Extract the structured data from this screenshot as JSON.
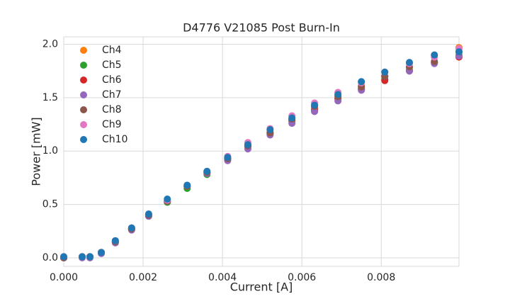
{
  "chart_data": {
    "type": "scatter",
    "title": "D4776 V21085 Post Burn-In",
    "x_label": "Current [A]",
    "y_label": "Power [mW]",
    "x": [
      0.0,
      0.000464,
      0.00066,
      0.000946,
      0.0013,
      0.00171,
      0.00214,
      0.00261,
      0.00311,
      0.00361,
      0.00413,
      0.00464,
      0.0052,
      0.00575,
      0.00632,
      0.00691,
      0.0075,
      0.00809,
      0.00871,
      0.00934,
      0.00996
    ],
    "series": [
      {
        "name": "Ch4",
        "color": "#ff7f0e",
        "values": [
          0.0,
          0.01,
          0.01,
          0.05,
          0.15,
          0.27,
          0.4,
          0.53,
          0.67,
          0.8,
          0.93,
          1.06,
          1.18,
          1.3,
          1.41,
          1.52,
          1.61,
          1.7,
          1.78,
          1.9,
          1.97
        ]
      },
      {
        "name": "Ch5",
        "color": "#2ca02c",
        "values": [
          0.0,
          0.01,
          0.01,
          0.05,
          0.15,
          0.27,
          0.39,
          0.52,
          0.65,
          0.78,
          0.92,
          1.04,
          1.16,
          1.28,
          1.38,
          1.49,
          1.58,
          1.67,
          1.76,
          1.83,
          1.9
        ]
      },
      {
        "name": "Ch6",
        "color": "#d62728",
        "values": [
          0.0,
          0.01,
          0.01,
          0.05,
          0.15,
          0.27,
          0.4,
          0.53,
          0.67,
          0.8,
          0.93,
          1.05,
          1.17,
          1.29,
          1.39,
          1.49,
          1.58,
          1.66,
          1.75,
          1.83,
          1.88
        ]
      },
      {
        "name": "Ch7",
        "color": "#9467bd",
        "values": [
          0.0,
          0.0,
          0.0,
          0.04,
          0.14,
          0.26,
          0.39,
          0.53,
          0.67,
          0.79,
          0.91,
          1.02,
          1.15,
          1.26,
          1.37,
          1.47,
          1.57,
          1.7,
          1.75,
          1.82,
          1.89
        ]
      },
      {
        "name": "Ch8",
        "color": "#8c564b",
        "values": [
          0.0,
          0.01,
          0.01,
          0.05,
          0.15,
          0.27,
          0.4,
          0.53,
          0.67,
          0.8,
          0.93,
          1.05,
          1.17,
          1.3,
          1.42,
          1.51,
          1.6,
          1.7,
          1.79,
          1.84,
          1.93
        ]
      },
      {
        "name": "Ch9",
        "color": "#e377c2",
        "values": [
          0.01,
          0.01,
          0.01,
          0.05,
          0.16,
          0.28,
          0.41,
          0.54,
          0.68,
          0.81,
          0.95,
          1.08,
          1.21,
          1.33,
          1.45,
          1.55,
          1.64,
          1.74,
          1.82,
          1.88,
          1.96
        ]
      },
      {
        "name": "Ch10",
        "color": "#1f77b4",
        "values": [
          0.01,
          0.01,
          0.01,
          0.05,
          0.16,
          0.28,
          0.41,
          0.55,
          0.68,
          0.81,
          0.94,
          1.06,
          1.2,
          1.31,
          1.43,
          1.53,
          1.65,
          1.74,
          1.83,
          1.9,
          1.93
        ]
      }
    ],
    "xlim": [
      0.0,
      0.00996
    ],
    "ylim": [
      -0.08,
      2.07
    ],
    "xticks": [
      {
        "value": 0,
        "label": "0.000"
      },
      {
        "value": 0.002,
        "label": "0.002"
      },
      {
        "value": 0.004,
        "label": "0.004"
      },
      {
        "value": 0.006,
        "label": "0.006"
      },
      {
        "value": 0.008,
        "label": "0.008"
      }
    ],
    "yticks": [
      {
        "value": 0,
        "label": "0.0"
      },
      0.5,
      {
        "value": 1,
        "label": "1.0"
      },
      1.5,
      {
        "value": 2,
        "label": "2.0"
      }
    ],
    "grid": true,
    "legend": "upper-left"
  }
}
